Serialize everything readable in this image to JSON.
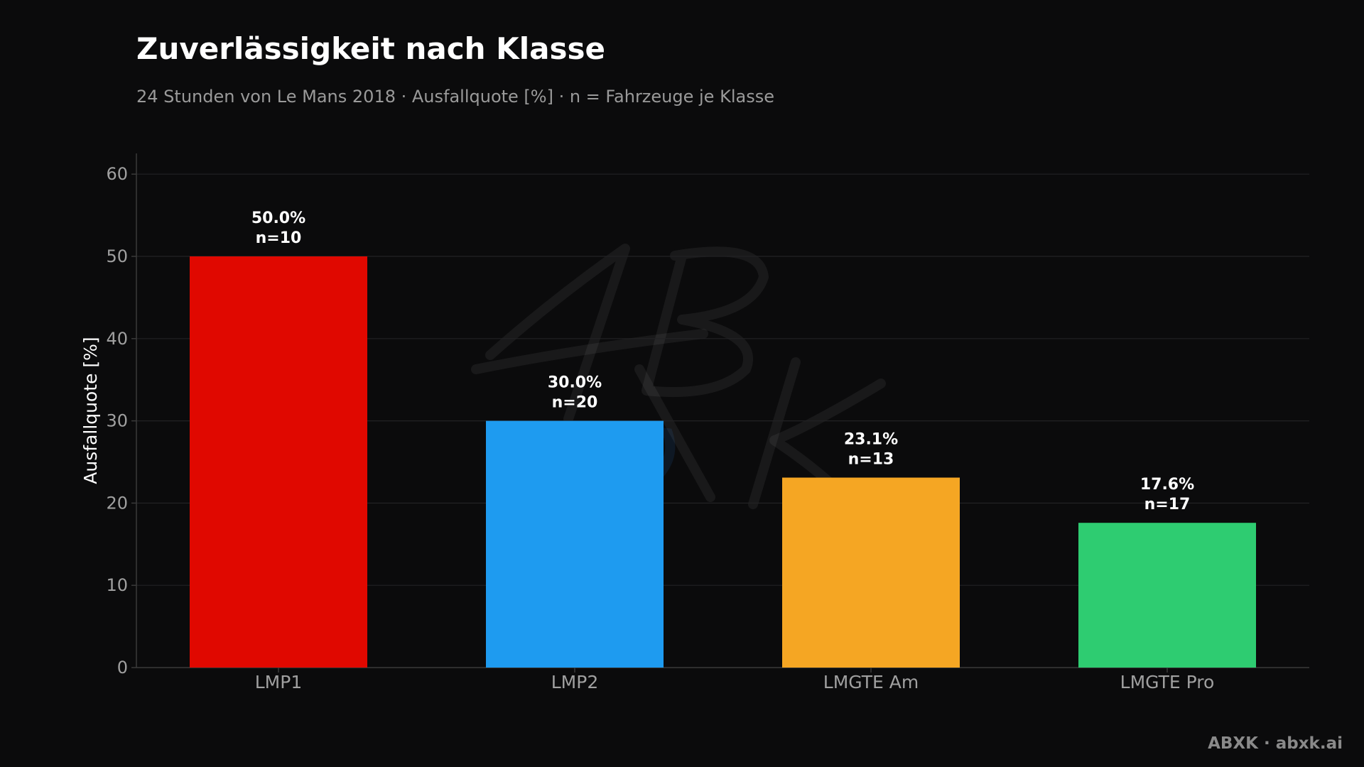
{
  "chart_data": {
    "type": "bar",
    "title": "Zuverlässigkeit nach Klasse",
    "subtitle": "24 Stunden von Le Mans 2018 · Ausfallquote [%] · n = Fahrzeuge je Klasse",
    "xlabel": "",
    "ylabel": "Ausfallquote [%]",
    "ylim": [
      0,
      62
    ],
    "yticks": [
      0,
      10,
      20,
      30,
      40,
      50,
      60
    ],
    "grid": true,
    "categories": [
      "LMP1",
      "LMP2",
      "LMGTE Am",
      "LMGTE Pro"
    ],
    "values": [
      50.0,
      30.0,
      23.1,
      17.6
    ],
    "n": [
      10,
      20,
      13,
      17
    ],
    "value_labels": [
      "50.0%",
      "30.0%",
      "23.1%",
      "17.6%"
    ],
    "n_labels": [
      "n=10",
      "n=20",
      "n=13",
      "n=17"
    ],
    "colors": [
      "#e00800",
      "#1e9bf0",
      "#f5a623",
      "#2ecc71"
    ]
  },
  "footer": "ABXK · abxk.ai",
  "watermark": "ABXK"
}
